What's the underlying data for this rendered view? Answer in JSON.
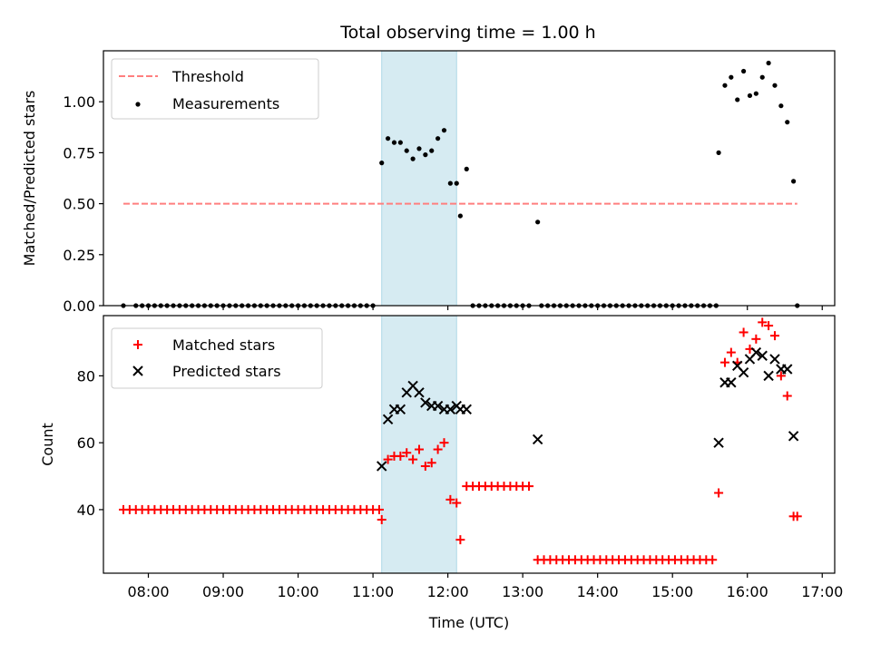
{
  "title": "Total observing time = 1.00 h",
  "colors": {
    "threshold": "#ff7f7f",
    "measurement": "#000000",
    "matched": "#ff0000",
    "predicted": "#000000",
    "span": "#add8e6"
  },
  "chart_data": [
    {
      "type": "scatter",
      "panel": "top",
      "xlabel": "",
      "ylabel": "Matched/Predicted stars",
      "xlim": [
        "07:24",
        "17:10"
      ],
      "ylim": [
        0,
        1.25
      ],
      "yticks": [
        "0.00",
        "0.25",
        "0.50",
        "0.75",
        "1.00"
      ],
      "highlight_span": [
        "11:07",
        "12:07"
      ],
      "legend_position": "upper-left",
      "threshold": {
        "name": "Threshold",
        "y": 0.5,
        "x_range": [
          "07:40",
          "16:40"
        ]
      },
      "measurements": {
        "name": "Measurements",
        "points": [
          [
            "07:40",
            0
          ],
          [
            "07:50",
            0
          ],
          [
            "07:55",
            0
          ],
          [
            "08:00",
            0
          ],
          [
            "08:05",
            0
          ],
          [
            "08:10",
            0
          ],
          [
            "08:15",
            0
          ],
          [
            "08:20",
            0
          ],
          [
            "08:25",
            0
          ],
          [
            "08:30",
            0
          ],
          [
            "08:35",
            0
          ],
          [
            "08:40",
            0
          ],
          [
            "08:45",
            0
          ],
          [
            "08:50",
            0
          ],
          [
            "08:55",
            0
          ],
          [
            "09:00",
            0
          ],
          [
            "09:05",
            0
          ],
          [
            "09:10",
            0
          ],
          [
            "09:15",
            0
          ],
          [
            "09:20",
            0
          ],
          [
            "09:25",
            0
          ],
          [
            "09:30",
            0
          ],
          [
            "09:35",
            0
          ],
          [
            "09:40",
            0
          ],
          [
            "09:45",
            0
          ],
          [
            "09:50",
            0
          ],
          [
            "09:55",
            0
          ],
          [
            "10:00",
            0
          ],
          [
            "10:05",
            0
          ],
          [
            "10:10",
            0
          ],
          [
            "10:15",
            0
          ],
          [
            "10:20",
            0
          ],
          [
            "10:25",
            0
          ],
          [
            "10:30",
            0
          ],
          [
            "10:35",
            0
          ],
          [
            "10:40",
            0
          ],
          [
            "10:45",
            0
          ],
          [
            "10:50",
            0
          ],
          [
            "10:55",
            0
          ],
          [
            "11:00",
            0
          ],
          [
            "11:07",
            0.7
          ],
          [
            "11:12",
            0.82
          ],
          [
            "11:17",
            0.8
          ],
          [
            "11:22",
            0.8
          ],
          [
            "11:27",
            0.76
          ],
          [
            "11:32",
            0.72
          ],
          [
            "11:37",
            0.77
          ],
          [
            "11:42",
            0.74
          ],
          [
            "11:47",
            0.76
          ],
          [
            "11:52",
            0.82
          ],
          [
            "11:57",
            0.86
          ],
          [
            "12:02",
            0.6
          ],
          [
            "12:07",
            0.6
          ],
          [
            "12:10",
            0.44
          ],
          [
            "12:15",
            0.67
          ],
          [
            "12:20",
            0
          ],
          [
            "12:25",
            0
          ],
          [
            "12:30",
            0
          ],
          [
            "12:35",
            0
          ],
          [
            "12:40",
            0
          ],
          [
            "12:45",
            0
          ],
          [
            "12:50",
            0
          ],
          [
            "12:55",
            0
          ],
          [
            "13:00",
            0
          ],
          [
            "13:05",
            0
          ],
          [
            "13:12",
            0.41
          ],
          [
            "13:15",
            0
          ],
          [
            "13:20",
            0
          ],
          [
            "13:25",
            0
          ],
          [
            "13:30",
            0
          ],
          [
            "13:35",
            0
          ],
          [
            "13:40",
            0
          ],
          [
            "13:45",
            0
          ],
          [
            "13:50",
            0
          ],
          [
            "13:55",
            0
          ],
          [
            "14:00",
            0
          ],
          [
            "14:05",
            0
          ],
          [
            "14:10",
            0
          ],
          [
            "14:15",
            0
          ],
          [
            "14:20",
            0
          ],
          [
            "14:25",
            0
          ],
          [
            "14:30",
            0
          ],
          [
            "14:35",
            0
          ],
          [
            "14:40",
            0
          ],
          [
            "14:45",
            0
          ],
          [
            "14:50",
            0
          ],
          [
            "14:55",
            0
          ],
          [
            "15:00",
            0
          ],
          [
            "15:05",
            0
          ],
          [
            "15:10",
            0
          ],
          [
            "15:15",
            0
          ],
          [
            "15:20",
            0
          ],
          [
            "15:25",
            0
          ],
          [
            "15:30",
            0
          ],
          [
            "15:35",
            0
          ],
          [
            "15:37",
            0.75
          ],
          [
            "15:42",
            1.08
          ],
          [
            "15:47",
            1.12
          ],
          [
            "15:52",
            1.01
          ],
          [
            "15:57",
            1.15
          ],
          [
            "16:02",
            1.03
          ],
          [
            "16:07",
            1.04
          ],
          [
            "16:12",
            1.12
          ],
          [
            "16:17",
            1.19
          ],
          [
            "16:22",
            1.08
          ],
          [
            "16:27",
            0.98
          ],
          [
            "16:32",
            0.9
          ],
          [
            "16:37",
            0.61
          ],
          [
            "16:40",
            0
          ]
        ]
      }
    },
    {
      "type": "scatter",
      "panel": "bottom",
      "xlabel": "Time (UTC)",
      "ylabel": "Count",
      "xlim": [
        "07:24",
        "17:10"
      ],
      "ylim": [
        21,
        98
      ],
      "yticks": [
        "40",
        "60",
        "80"
      ],
      "xticks": [
        "08:00",
        "09:00",
        "10:00",
        "11:00",
        "12:00",
        "13:00",
        "14:00",
        "15:00",
        "16:00",
        "17:00"
      ],
      "highlight_span": [
        "11:07",
        "12:07"
      ],
      "legend_position": "upper-left",
      "series": [
        {
          "name": "Matched stars",
          "marker": "plus",
          "points": [
            [
              "07:40",
              40
            ],
            [
              "07:45",
              40
            ],
            [
              "07:50",
              40
            ],
            [
              "07:55",
              40
            ],
            [
              "08:00",
              40
            ],
            [
              "08:05",
              40
            ],
            [
              "08:10",
              40
            ],
            [
              "08:15",
              40
            ],
            [
              "08:20",
              40
            ],
            [
              "08:25",
              40
            ],
            [
              "08:30",
              40
            ],
            [
              "08:35",
              40
            ],
            [
              "08:40",
              40
            ],
            [
              "08:45",
              40
            ],
            [
              "08:50",
              40
            ],
            [
              "08:55",
              40
            ],
            [
              "09:00",
              40
            ],
            [
              "09:05",
              40
            ],
            [
              "09:10",
              40
            ],
            [
              "09:15",
              40
            ],
            [
              "09:20",
              40
            ],
            [
              "09:25",
              40
            ],
            [
              "09:30",
              40
            ],
            [
              "09:35",
              40
            ],
            [
              "09:40",
              40
            ],
            [
              "09:45",
              40
            ],
            [
              "09:50",
              40
            ],
            [
              "09:55",
              40
            ],
            [
              "10:00",
              40
            ],
            [
              "10:05",
              40
            ],
            [
              "10:10",
              40
            ],
            [
              "10:15",
              40
            ],
            [
              "10:20",
              40
            ],
            [
              "10:25",
              40
            ],
            [
              "10:30",
              40
            ],
            [
              "10:35",
              40
            ],
            [
              "10:40",
              40
            ],
            [
              "10:45",
              40
            ],
            [
              "10:50",
              40
            ],
            [
              "10:55",
              40
            ],
            [
              "11:00",
              40
            ],
            [
              "11:05",
              40
            ],
            [
              "11:07",
              37
            ],
            [
              "11:12",
              55
            ],
            [
              "11:17",
              56
            ],
            [
              "11:22",
              56
            ],
            [
              "11:27",
              57
            ],
            [
              "11:32",
              55
            ],
            [
              "11:37",
              58
            ],
            [
              "11:42",
              53
            ],
            [
              "11:47",
              54
            ],
            [
              "11:52",
              58
            ],
            [
              "11:57",
              60
            ],
            [
              "12:02",
              43
            ],
            [
              "12:07",
              42
            ],
            [
              "12:10",
              31
            ],
            [
              "12:15",
              47
            ],
            [
              "12:20",
              47
            ],
            [
              "12:25",
              47
            ],
            [
              "12:30",
              47
            ],
            [
              "12:35",
              47
            ],
            [
              "12:40",
              47
            ],
            [
              "12:45",
              47
            ],
            [
              "12:50",
              47
            ],
            [
              "12:55",
              47
            ],
            [
              "13:00",
              47
            ],
            [
              "13:05",
              47
            ],
            [
              "13:12",
              25
            ],
            [
              "13:17",
              25
            ],
            [
              "13:22",
              25
            ],
            [
              "13:27",
              25
            ],
            [
              "13:32",
              25
            ],
            [
              "13:37",
              25
            ],
            [
              "13:42",
              25
            ],
            [
              "13:47",
              25
            ],
            [
              "13:52",
              25
            ],
            [
              "13:57",
              25
            ],
            [
              "14:02",
              25
            ],
            [
              "14:07",
              25
            ],
            [
              "14:12",
              25
            ],
            [
              "14:17",
              25
            ],
            [
              "14:22",
              25
            ],
            [
              "14:27",
              25
            ],
            [
              "14:32",
              25
            ],
            [
              "14:37",
              25
            ],
            [
              "14:42",
              25
            ],
            [
              "14:47",
              25
            ],
            [
              "14:52",
              25
            ],
            [
              "14:57",
              25
            ],
            [
              "15:02",
              25
            ],
            [
              "15:07",
              25
            ],
            [
              "15:12",
              25
            ],
            [
              "15:17",
              25
            ],
            [
              "15:22",
              25
            ],
            [
              "15:27",
              25
            ],
            [
              "15:32",
              25
            ],
            [
              "15:37",
              45
            ],
            [
              "15:42",
              84
            ],
            [
              "15:47",
              87
            ],
            [
              "15:52",
              84
            ],
            [
              "15:57",
              93
            ],
            [
              "16:02",
              88
            ],
            [
              "16:07",
              91
            ],
            [
              "16:12",
              96
            ],
            [
              "16:17",
              95
            ],
            [
              "16:22",
              92
            ],
            [
              "16:27",
              80
            ],
            [
              "16:32",
              74
            ],
            [
              "16:37",
              38
            ],
            [
              "16:40",
              38
            ]
          ]
        },
        {
          "name": "Predicted stars",
          "marker": "x",
          "points": [
            [
              "11:07",
              53
            ],
            [
              "11:12",
              67
            ],
            [
              "11:17",
              70
            ],
            [
              "11:22",
              70
            ],
            [
              "11:27",
              75
            ],
            [
              "11:32",
              77
            ],
            [
              "11:37",
              75
            ],
            [
              "11:42",
              72
            ],
            [
              "11:47",
              71
            ],
            [
              "11:52",
              71
            ],
            [
              "11:57",
              70
            ],
            [
              "12:02",
              70
            ],
            [
              "12:07",
              71
            ],
            [
              "12:10",
              70
            ],
            [
              "12:15",
              70
            ],
            [
              "13:12",
              61
            ],
            [
              "15:37",
              60
            ],
            [
              "15:42",
              78
            ],
            [
              "15:47",
              78
            ],
            [
              "15:52",
              83
            ],
            [
              "15:57",
              81
            ],
            [
              "16:02",
              85
            ],
            [
              "16:07",
              87
            ],
            [
              "16:12",
              86
            ],
            [
              "16:17",
              80
            ],
            [
              "16:22",
              85
            ],
            [
              "16:27",
              82
            ],
            [
              "16:32",
              82
            ],
            [
              "16:37",
              62
            ]
          ]
        }
      ]
    }
  ]
}
